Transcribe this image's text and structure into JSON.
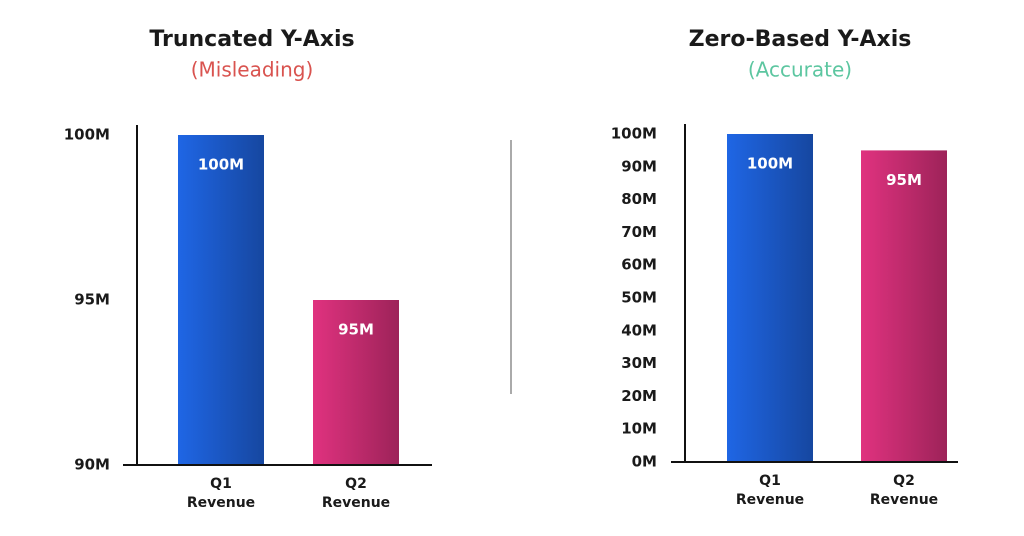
{
  "chart_data": [
    {
      "type": "bar",
      "title": "Truncated Y-Axis",
      "subtitle": "(Misleading)",
      "subtitle_color": "#d9534f",
      "categories": [
        "Q1 Revenue",
        "Q2 Revenue"
      ],
      "values": [
        100000000,
        95000000
      ],
      "value_labels": [
        "100M",
        "95M"
      ],
      "colors": [
        "#1f66e5",
        "#e0327f"
      ],
      "ylim": [
        90000000,
        100000000
      ],
      "yticks": [
        {
          "value": 90000000,
          "label": "90M"
        },
        {
          "value": 95000000,
          "label": "95M"
        },
        {
          "value": 100000000,
          "label": "100M"
        }
      ],
      "grid": false
    },
    {
      "type": "bar",
      "title": "Zero-Based Y-Axis",
      "subtitle": "(Accurate)",
      "subtitle_color": "#5cc6a0",
      "categories": [
        "Q1 Revenue",
        "Q2 Revenue"
      ],
      "values": [
        100000000,
        95000000
      ],
      "value_labels": [
        "100M",
        "95M"
      ],
      "colors": [
        "#1f66e5",
        "#e0327f"
      ],
      "ylim": [
        0,
        100000000
      ],
      "yticks": [
        {
          "value": 0,
          "label": "0M"
        },
        {
          "value": 10000000,
          "label": "10M"
        },
        {
          "value": 20000000,
          "label": "20M"
        },
        {
          "value": 30000000,
          "label": "30M"
        },
        {
          "value": 40000000,
          "label": "40M"
        },
        {
          "value": 50000000,
          "label": "50M"
        },
        {
          "value": 60000000,
          "label": "60M"
        },
        {
          "value": 70000000,
          "label": "70M"
        },
        {
          "value": 80000000,
          "label": "80M"
        },
        {
          "value": 90000000,
          "label": "90M"
        },
        {
          "value": 100000000,
          "label": "100M"
        }
      ],
      "grid": false
    }
  ]
}
